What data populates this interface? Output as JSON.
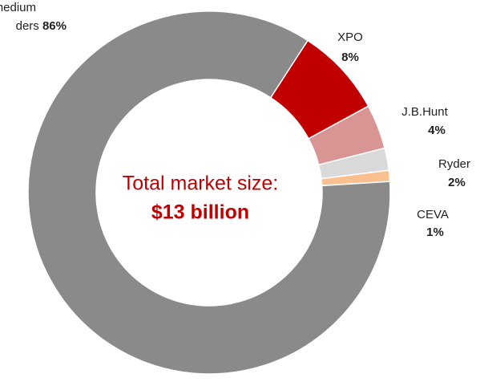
{
  "chart_data": {
    "type": "donut",
    "categories": [
      "medium ders",
      "XPO",
      "J.B.Hunt",
      "Ryder",
      "CEVA"
    ],
    "values": [
      86,
      8,
      4,
      2,
      1
    ],
    "value_labels": [
      "86%",
      "8%",
      "4%",
      "2%",
      "1%"
    ],
    "colors": [
      "#8a8a8a",
      "#c00000",
      "#d99594",
      "#d9d9d9",
      "#fac090"
    ],
    "annotations": [
      "Total market size:",
      "$13 billion"
    ]
  }
}
